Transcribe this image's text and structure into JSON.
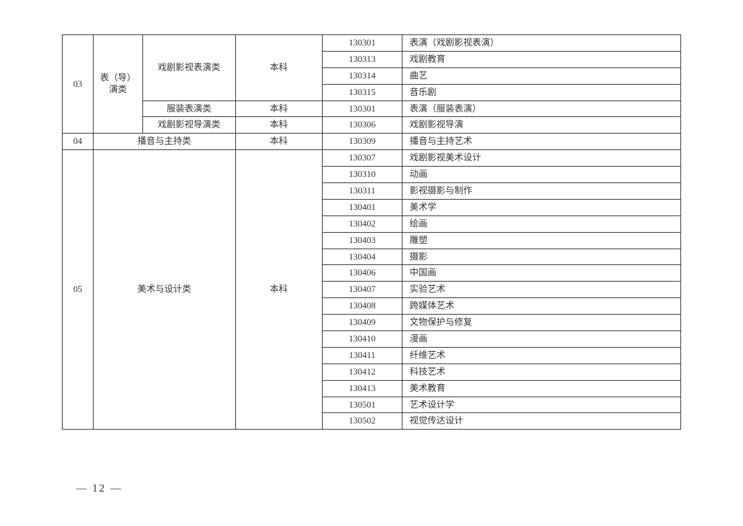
{
  "pageNumber": "— 12 —",
  "groups": [
    {
      "code": "03",
      "category": "表（导）演类",
      "sub": [
        {
          "name": "戏剧影视表演类",
          "level": "本科",
          "rows": [
            {
              "num": "130301",
              "major": "表演（戏剧影视表演）"
            },
            {
              "num": "130313",
              "major": "戏剧教育"
            },
            {
              "num": "130314",
              "major": "曲艺"
            },
            {
              "num": "130315",
              "major": "音乐剧"
            }
          ]
        },
        {
          "name": "服装表演类",
          "level": "本科",
          "rows": [
            {
              "num": "130301",
              "major": "表演（服装表演）"
            }
          ]
        },
        {
          "name": "戏剧影视导演类",
          "level": "本科",
          "rows": [
            {
              "num": "130306",
              "major": "戏剧影视导演"
            }
          ]
        }
      ]
    },
    {
      "code": "04",
      "category": "播音与主持类",
      "sub": [
        {
          "name": "",
          "level": "本科",
          "rows": [
            {
              "num": "130309",
              "major": "播音与主持艺术"
            }
          ]
        }
      ]
    },
    {
      "code": "05",
      "category": "美术与设计类",
      "sub": [
        {
          "name": "",
          "level": "本科",
          "rows": [
            {
              "num": "130307",
              "major": "戏剧影视美术设计"
            },
            {
              "num": "130310",
              "major": "动画"
            },
            {
              "num": "130311",
              "major": "影视摄影与制作"
            },
            {
              "num": "130401",
              "major": "美术学"
            },
            {
              "num": "130402",
              "major": "绘画"
            },
            {
              "num": "130403",
              "major": "雕塑"
            },
            {
              "num": "130404",
              "major": "摄影"
            },
            {
              "num": "130406",
              "major": "中国画"
            },
            {
              "num": "130407",
              "major": "实验艺术"
            },
            {
              "num": "130408",
              "major": "跨媒体艺术"
            },
            {
              "num": "130409",
              "major": "文物保护与修复"
            },
            {
              "num": "130410",
              "major": "漫画"
            },
            {
              "num": "130411",
              "major": "纤维艺术"
            },
            {
              "num": "130412",
              "major": "科技艺术"
            },
            {
              "num": "130413",
              "major": "美术教育"
            },
            {
              "num": "130501",
              "major": "艺术设计学"
            },
            {
              "num": "130502",
              "major": "视觉传达设计"
            }
          ]
        }
      ]
    }
  ]
}
